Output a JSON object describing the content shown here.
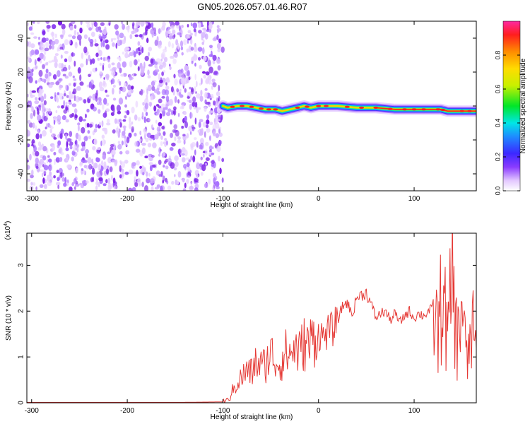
{
  "title": "GN05.2026.057.01.46.R07",
  "chart_data": [
    {
      "type": "heatmap",
      "xlabel": "Height of straight line (km)",
      "ylabel": "Frequency (Hz)",
      "xlim": [
        -305,
        165
      ],
      "ylim": [
        -50,
        50
      ],
      "xticks": [
        -300,
        -200,
        -100,
        0,
        100
      ],
      "yticks": [
        -40,
        -20,
        0,
        20,
        40
      ],
      "noise_region": [
        -305,
        -100
      ],
      "ridge": {
        "x": [
          -100,
          -95,
          -85,
          -75,
          -65,
          -55,
          -45,
          -38,
          -30,
          -22,
          -15,
          -8,
          0,
          10,
          20,
          40,
          60,
          80,
          100,
          120,
          128,
          135,
          145,
          155,
          165
        ],
        "y": [
          0,
          -1,
          0,
          0,
          -1,
          -2,
          -2,
          -3,
          -2,
          -1,
          0,
          -1,
          0,
          0,
          0,
          -1,
          -1,
          -2,
          -2,
          -2,
          -2,
          -3,
          -3,
          -3,
          -3
        ]
      },
      "colorbar": {
        "label": "Normalized spectral amplitude",
        "ticks": [
          "0.0",
          "0.2",
          "0.4",
          "0.6",
          "0.8"
        ],
        "range": [
          0,
          1
        ]
      }
    },
    {
      "type": "line",
      "xlabel": "Height of straight line (km)",
      "ylabel": "SNR (10 * v/v)",
      "yscale_label": "(x10",
      "yscale_exp": "4",
      "yscale_close": ")",
      "xlim": [
        -305,
        165
      ],
      "ylim": [
        0,
        3.7
      ],
      "xticks": [
        -300,
        -200,
        -100,
        0,
        100
      ],
      "yticks": [
        0,
        1,
        2,
        3
      ],
      "color": "#e53935",
      "series": [
        {
          "x": [
            -305,
            -140,
            -100,
            -95,
            -90,
            -85,
            -80,
            -75,
            -70,
            -65,
            -60,
            -55,
            -50,
            -45,
            -40,
            -35,
            -30,
            -25,
            -20,
            -15,
            -10,
            -5,
            0,
            5,
            10,
            15,
            20,
            25,
            30,
            35,
            40,
            45,
            50,
            55,
            60,
            65,
            70,
            75,
            80,
            85,
            90,
            95,
            100,
            105,
            110,
            115,
            120,
            125,
            130,
            135,
            140,
            145,
            150,
            155,
            160,
            165
          ],
          "y": [
            0.01,
            0.01,
            0.02,
            0.05,
            0.25,
            0.45,
            0.55,
            0.7,
            0.65,
            0.9,
            0.8,
            0.85,
            1.1,
            0.9,
            0.85,
            1.1,
            1.05,
            1.2,
            1.1,
            1.3,
            1.25,
            1.45,
            1.5,
            1.45,
            1.55,
            1.6,
            1.8,
            2.1,
            2.2,
            1.9,
            2.3,
            2.35,
            2.4,
            2.15,
            1.85,
            1.95,
            2.0,
            1.8,
            1.95,
            1.75,
            1.9,
            2.0,
            1.85,
            1.95,
            1.9,
            2.0,
            2.05,
            1.5,
            2.5,
            1.3,
            2.8,
            1.2,
            2.3,
            0.8,
            1.6,
            1.2
          ]
        }
      ]
    }
  ]
}
